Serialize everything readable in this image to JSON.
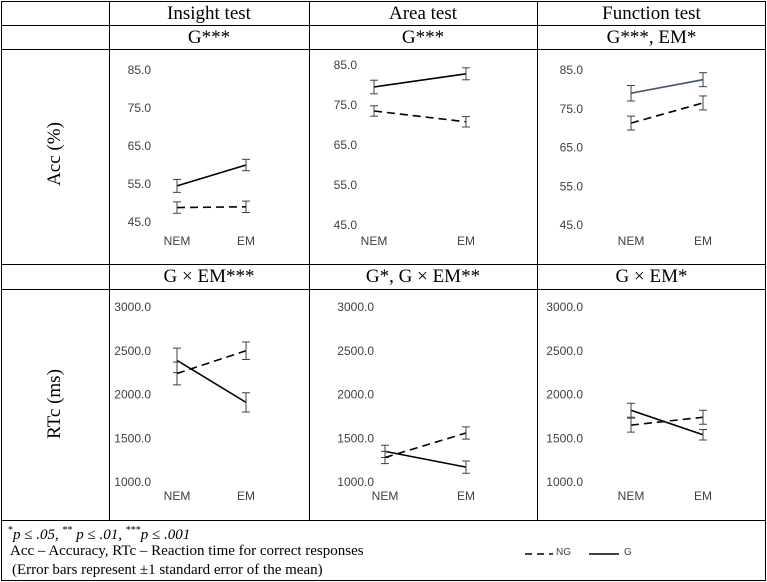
{
  "columns": [
    "Insight test",
    "Area test",
    "Function test"
  ],
  "acc_row": {
    "axis_label": "Acc (%)",
    "effects": [
      "G***",
      "G***",
      "G***, EM*"
    ]
  },
  "rt_row": {
    "axis_label": "RTc (ms)",
    "effects": [
      "G × EM***",
      "G*, G × EM**",
      "G × EM*"
    ]
  },
  "notes": {
    "p1": "p ≤ .05, ",
    "p2": " p ≤ .01, ",
    "p3": "p ≤ .001",
    "star1": "*",
    "star2": "**",
    "star3": "***",
    "line2": "Acc – Accuracy, RTc – Reaction time for correct responses",
    "line3": "(Error bars represent ±1 standard error of the mean)"
  },
  "legend": {
    "ng": "NG",
    "g": "G"
  },
  "colors": {
    "line": "#000000",
    "tick_text": "#404040",
    "errorbar": "#404040",
    "function_acc_G": "#44546A"
  },
  "chart_data": [
    {
      "type": "line",
      "title": "G***",
      "ylabel": "Acc (%)",
      "categories": [
        "NEM",
        "EM"
      ],
      "ylim": [
        45,
        85
      ],
      "yticks": [
        45.0,
        55.0,
        65.0,
        75.0,
        85.0
      ],
      "series": [
        {
          "name": "G",
          "style": "solid",
          "values": [
            54.5,
            60.0
          ],
          "errors": [
            1.7,
            1.5
          ]
        },
        {
          "name": "NG",
          "style": "dashed",
          "values": [
            48.8,
            49.0
          ],
          "errors": [
            1.5,
            1.5
          ]
        }
      ]
    },
    {
      "type": "line",
      "title": "G***",
      "ylabel": "Acc (%)",
      "categories": [
        "NEM",
        "EM"
      ],
      "ylim": [
        45,
        85
      ],
      "yticks": [
        45.0,
        55.0,
        65.0,
        75.0,
        85.0
      ],
      "series": [
        {
          "name": "G",
          "style": "solid",
          "values": [
            79.5,
            82.8
          ],
          "errors": [
            1.7,
            1.5
          ]
        },
        {
          "name": "NG",
          "style": "dashed",
          "values": [
            73.5,
            70.8
          ],
          "errors": [
            1.3,
            1.3
          ]
        }
      ]
    },
    {
      "type": "line",
      "title": "G***, EM*",
      "ylabel": "Acc (%)",
      "categories": [
        "NEM",
        "EM"
      ],
      "ylim": [
        45,
        85
      ],
      "yticks": [
        45.0,
        55.0,
        65.0,
        75.0,
        85.0
      ],
      "series": [
        {
          "name": "G",
          "style": "solid",
          "values": [
            79.0,
            82.5
          ],
          "errors": [
            2.0,
            1.8
          ]
        },
        {
          "name": "NG",
          "style": "dashed",
          "values": [
            71.3,
            76.5
          ],
          "errors": [
            1.8,
            1.8
          ]
        }
      ]
    },
    {
      "type": "line",
      "title": "G × EM***",
      "ylabel": "RTc (ms)",
      "categories": [
        "NEM",
        "EM"
      ],
      "ylim": [
        1000,
        3000
      ],
      "yticks": [
        1000.0,
        1500.0,
        2000.0,
        2500.0,
        3000.0
      ],
      "series": [
        {
          "name": "G",
          "style": "solid",
          "values": [
            2390,
            1910
          ],
          "errors": [
            140,
            110
          ]
        },
        {
          "name": "NG",
          "style": "dashed",
          "values": [
            2240,
            2500
          ],
          "errors": [
            130,
            100
          ]
        }
      ]
    },
    {
      "type": "line",
      "title": "G*, G × EM**",
      "ylabel": "RTc (ms)",
      "categories": [
        "NEM",
        "EM"
      ],
      "ylim": [
        1000,
        3000
      ],
      "yticks": [
        1000.0,
        1500.0,
        2000.0,
        2500.0,
        3000.0
      ],
      "series": [
        {
          "name": "G",
          "style": "solid",
          "values": [
            1350,
            1170
          ],
          "errors": [
            70,
            70
          ]
        },
        {
          "name": "NG",
          "style": "dashed",
          "values": [
            1280,
            1560
          ],
          "errors": [
            70,
            70
          ]
        }
      ]
    },
    {
      "type": "line",
      "title": "G × EM*",
      "ylabel": "RTc (ms)",
      "categories": [
        "NEM",
        "EM"
      ],
      "ylim": [
        1000,
        3000
      ],
      "yticks": [
        1000.0,
        1500.0,
        2000.0,
        2500.0,
        3000.0
      ],
      "series": [
        {
          "name": "G",
          "style": "solid",
          "values": [
            1820,
            1540
          ],
          "errors": [
            80,
            60
          ]
        },
        {
          "name": "NG",
          "style": "dashed",
          "values": [
            1650,
            1740
          ],
          "errors": [
            80,
            80
          ]
        }
      ]
    }
  ]
}
